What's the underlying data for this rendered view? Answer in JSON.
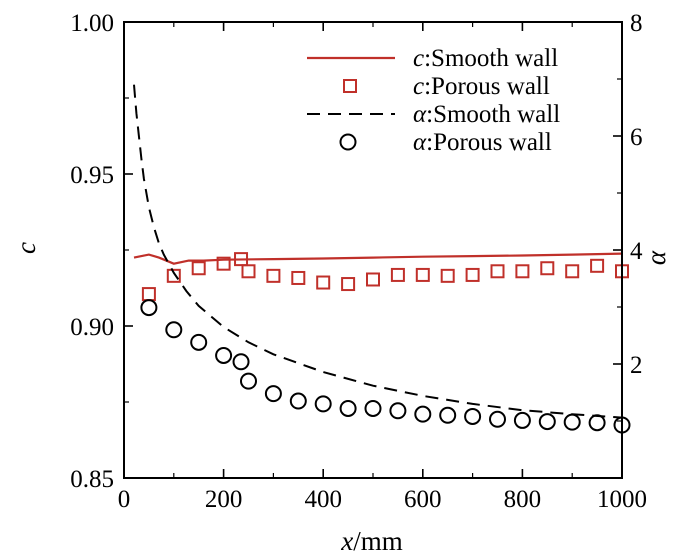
{
  "chart_data": {
    "type": "line",
    "x_axis": {
      "label_var": "x",
      "label_unit": "/mm",
      "range": [
        0,
        1000
      ],
      "ticks": [
        0,
        200,
        400,
        600,
        800,
        1000
      ],
      "tick_labels": [
        "0",
        "200",
        "400",
        "600",
        "800",
        "1000"
      ]
    },
    "y_left": {
      "label": "c",
      "range": [
        0.85,
        1.0
      ],
      "ticks": [
        0.85,
        0.9,
        0.95,
        1.0
      ],
      "tick_labels": [
        "0.85",
        "0.90",
        "0.95",
        "1.00"
      ]
    },
    "y_right": {
      "label": "α",
      "range": [
        0,
        8
      ],
      "ticks": [
        2,
        4,
        6,
        8
      ],
      "tick_labels": [
        "2",
        "4",
        "6",
        "8"
      ]
    },
    "grid": false,
    "legend_position": "top-right",
    "series": [
      {
        "key": "c_smooth",
        "name_var": "c",
        "name_text": ":Smooth wall",
        "axis": "left",
        "style": "solid-line",
        "color": "#c0302a",
        "x": [
          20,
          50,
          70,
          100,
          130,
          160,
          200,
          300,
          400,
          500,
          600,
          700,
          800,
          900,
          1000
        ],
        "y": [
          0.9225,
          0.9235,
          0.9225,
          0.9205,
          0.9215,
          0.9215,
          0.9218,
          0.922,
          0.9222,
          0.9225,
          0.9228,
          0.923,
          0.9232,
          0.9235,
          0.9238
        ]
      },
      {
        "key": "c_porous",
        "name_var": "c",
        "name_text": ":Porous wall",
        "axis": "left",
        "style": "square-marker",
        "color": "#c0302a",
        "x": [
          50,
          100,
          150,
          200,
          235,
          250,
          300,
          350,
          400,
          450,
          500,
          550,
          600,
          650,
          700,
          750,
          800,
          850,
          900,
          950,
          1000
        ],
        "y": [
          0.9105,
          0.9165,
          0.919,
          0.9205,
          0.922,
          0.918,
          0.9165,
          0.9158,
          0.9143,
          0.9138,
          0.9153,
          0.9168,
          0.9168,
          0.9165,
          0.9168,
          0.918,
          0.918,
          0.919,
          0.918,
          0.9198,
          0.918
        ]
      },
      {
        "key": "alpha_smooth",
        "name_var": "α",
        "name_text": ":Smooth wall",
        "axis": "right",
        "style": "dashed-line",
        "color": "#000000",
        "x": [
          20,
          25,
          30,
          35,
          40,
          50,
          60,
          70,
          80,
          100,
          125,
          150,
          200,
          250,
          300,
          400,
          500,
          600,
          700,
          800,
          900,
          1000
        ],
        "y": [
          6.9,
          6.4,
          6.0,
          5.6,
          5.25,
          4.75,
          4.4,
          4.12,
          3.92,
          3.6,
          3.28,
          3.02,
          2.65,
          2.38,
          2.17,
          1.86,
          1.62,
          1.44,
          1.3,
          1.19,
          1.12,
          1.06
        ]
      },
      {
        "key": "alpha_porous",
        "name_var": "α",
        "name_text": ":Porous wall",
        "axis": "right",
        "style": "circle-marker",
        "color": "#000000",
        "x": [
          50,
          100,
          150,
          200,
          235,
          250,
          300,
          350,
          400,
          450,
          500,
          550,
          600,
          650,
          700,
          750,
          800,
          850,
          900,
          950,
          1000
        ],
        "y": [
          2.99,
          2.6,
          2.38,
          2.15,
          2.04,
          1.7,
          1.48,
          1.35,
          1.3,
          1.22,
          1.22,
          1.18,
          1.12,
          1.1,
          1.08,
          1.03,
          1.01,
          0.99,
          0.98,
          0.97,
          0.93
        ]
      }
    ]
  }
}
